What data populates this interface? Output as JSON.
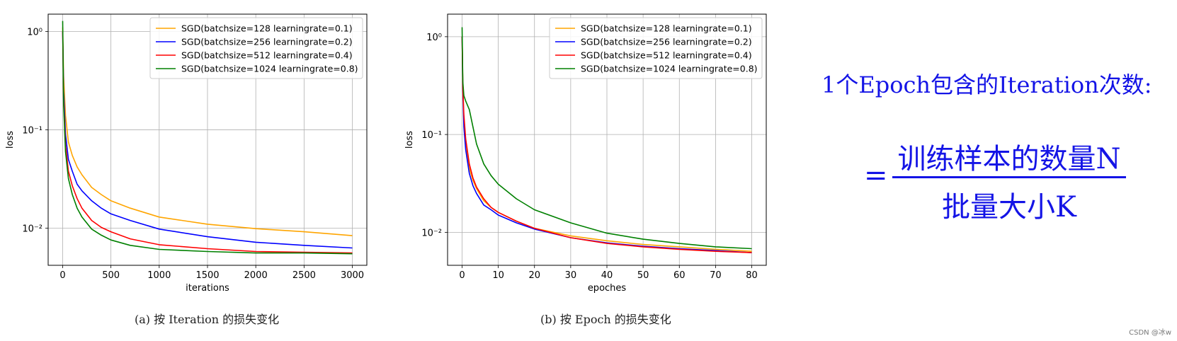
{
  "chart_data": [
    {
      "type": "line",
      "caption": "(a) 按 Iteration 的损失变化",
      "xlabel": "iterations",
      "ylabel": "loss",
      "yscale": "log",
      "xlim": [
        -150,
        3150
      ],
      "ylim": [
        0.0042,
        1.5
      ],
      "xticks": [
        0,
        500,
        1000,
        1500,
        2000,
        2500,
        3000
      ],
      "yticks": [
        {
          "value": 1,
          "label": "10⁰"
        },
        {
          "value": 0.1,
          "label": "10⁻¹"
        },
        {
          "value": 0.01,
          "label": "10⁻²"
        }
      ],
      "grid": true,
      "legend": "top-right",
      "series": [
        {
          "name": "SGD(batchsize=128 learningrate=0.1)",
          "color": "#FFA500",
          "x": [
            0,
            10,
            30,
            60,
            100,
            150,
            200,
            300,
            400,
            500,
            700,
            1000,
            1500,
            2000,
            2500,
            3000
          ],
          "y": [
            1.1,
            0.35,
            0.14,
            0.075,
            0.055,
            0.042,
            0.035,
            0.026,
            0.022,
            0.019,
            0.016,
            0.013,
            0.011,
            0.0099,
            0.0092,
            0.0084
          ]
        },
        {
          "name": "SGD(batchsize=256 learningrate=0.2)",
          "color": "#0000FF",
          "x": [
            0,
            10,
            30,
            60,
            100,
            150,
            200,
            300,
            400,
            500,
            700,
            1000,
            1500,
            2000,
            2500,
            3000
          ],
          "y": [
            1.0,
            0.25,
            0.09,
            0.05,
            0.038,
            0.028,
            0.024,
            0.019,
            0.016,
            0.014,
            0.012,
            0.0098,
            0.0082,
            0.0072,
            0.0067,
            0.0063
          ]
        },
        {
          "name": "SGD(batchsize=512 learningrate=0.4)",
          "color": "#FF0000",
          "x": [
            0,
            10,
            30,
            60,
            100,
            150,
            200,
            300,
            400,
            500,
            700,
            1000,
            1500,
            2000,
            2500,
            3000
          ],
          "y": [
            1.0,
            0.2,
            0.07,
            0.038,
            0.027,
            0.02,
            0.016,
            0.012,
            0.0102,
            0.0092,
            0.0078,
            0.0068,
            0.0062,
            0.0058,
            0.0057,
            0.0056
          ]
        },
        {
          "name": "SGD(batchsize=1024 learningrate=0.8)",
          "color": "#008000",
          "x": [
            0,
            10,
            30,
            60,
            100,
            150,
            200,
            300,
            400,
            500,
            700,
            1000,
            1500,
            2000,
            2500,
            3000
          ],
          "y": [
            1.28,
            0.18,
            0.06,
            0.032,
            0.022,
            0.016,
            0.013,
            0.0098,
            0.0085,
            0.0076,
            0.0067,
            0.0061,
            0.0058,
            0.0056,
            0.0056,
            0.0055
          ]
        }
      ]
    },
    {
      "type": "line",
      "caption": "(b) 按 Epoch 的损失变化",
      "xlabel": "epoches",
      "ylabel": "loss",
      "yscale": "log",
      "xlim": [
        -4,
        84
      ],
      "ylim": [
        0.0046,
        1.7
      ],
      "xticks": [
        0,
        10,
        20,
        30,
        40,
        50,
        60,
        70,
        80
      ],
      "yticks": [
        {
          "value": 1,
          "label": "10⁰"
        },
        {
          "value": 0.1,
          "label": "10⁻¹"
        },
        {
          "value": 0.01,
          "label": "10⁻²"
        }
      ],
      "grid": true,
      "legend": "top-right",
      "series": [
        {
          "name": "SGD(batchsize=128 learningrate=0.1)",
          "color": "#FFA500",
          "x": [
            0,
            0.2,
            0.5,
            1,
            2,
            3,
            4,
            6,
            8,
            10,
            15,
            20,
            30,
            40,
            50,
            60,
            70,
            80
          ],
          "y": [
            1.0,
            0.35,
            0.14,
            0.075,
            0.045,
            0.034,
            0.028,
            0.021,
            0.018,
            0.016,
            0.013,
            0.011,
            0.0092,
            0.0082,
            0.0075,
            0.0071,
            0.0067,
            0.0064
          ]
        },
        {
          "name": "SGD(batchsize=256 learningrate=0.2)",
          "color": "#0000FF",
          "x": [
            0,
            0.2,
            0.5,
            1,
            2,
            3,
            4,
            6,
            8,
            10,
            15,
            20,
            30,
            40,
            50,
            60,
            70,
            80
          ],
          "y": [
            1.0,
            0.3,
            0.12,
            0.07,
            0.04,
            0.03,
            0.025,
            0.019,
            0.017,
            0.015,
            0.0125,
            0.0108,
            0.0088,
            0.0078,
            0.0072,
            0.0068,
            0.0065,
            0.0062
          ]
        },
        {
          "name": "SGD(batchsize=512 learningrate=0.4)",
          "color": "#FF0000",
          "x": [
            0,
            0.2,
            0.5,
            1,
            2,
            3,
            4,
            6,
            8,
            10,
            15,
            20,
            30,
            40,
            50,
            60,
            70,
            80
          ],
          "y": [
            1.0,
            0.3,
            0.16,
            0.09,
            0.05,
            0.036,
            0.029,
            0.022,
            0.018,
            0.016,
            0.013,
            0.011,
            0.0088,
            0.0077,
            0.0071,
            0.0067,
            0.0064,
            0.0062
          ]
        },
        {
          "name": "SGD(batchsize=1024 learningrate=0.8)",
          "color": "#008000",
          "x": [
            0,
            0.2,
            0.5,
            1,
            2,
            3,
            4,
            6,
            8,
            10,
            15,
            20,
            30,
            40,
            50,
            60,
            70,
            80
          ],
          "y": [
            1.25,
            0.35,
            0.25,
            0.22,
            0.18,
            0.12,
            0.08,
            0.05,
            0.038,
            0.031,
            0.022,
            0.017,
            0.0125,
            0.0098,
            0.0085,
            0.0077,
            0.0071,
            0.0068
          ]
        }
      ]
    }
  ],
  "formula": {
    "line1": "1个Epoch包含的Iteration次数:",
    "equals": "=",
    "numerator": "训练样本的数量N",
    "denominator": "批量大小K"
  },
  "watermark": "CSDN @冰w"
}
